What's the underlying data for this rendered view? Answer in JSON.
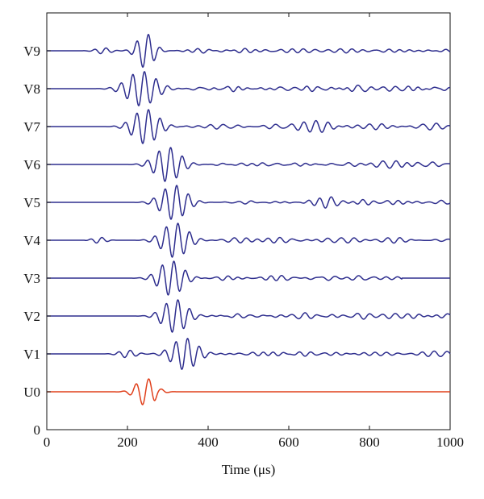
{
  "chart_data": {
    "type": "line",
    "title": "",
    "xlabel": "Time (μs)",
    "ylabel": "",
    "xlim": [
      0,
      1000
    ],
    "x_ticks": [
      0,
      200,
      400,
      600,
      800,
      1000
    ],
    "x_tick_labels": [
      "0",
      "200",
      "400",
      "600",
      "800",
      "1000"
    ],
    "y_ticks": [
      0,
      1,
      2,
      3,
      4,
      5,
      6,
      7,
      8,
      9,
      10
    ],
    "y_tick_labels": [
      "0",
      "U0",
      "V1",
      "V2",
      "V3",
      "V4",
      "V5",
      "V6",
      "V7",
      "V8",
      "V9"
    ],
    "grid": false,
    "series": [
      {
        "name": "U0",
        "baseline": 1,
        "color": "#e0401c",
        "start": 0,
        "trace_start": 0,
        "trace_end": 1000,
        "packets": [
          {
            "center": 245,
            "amp": 0.36,
            "sigma": 32,
            "period": 32
          },
          {
            "center": 270,
            "amp": 0.03,
            "sigma": 12,
            "period": 18
          }
        ],
        "noise_amp": 0.0,
        "noise_start": 0,
        "noise_end": 0
      },
      {
        "name": "V1",
        "baseline": 2,
        "color": "#2e2e8e",
        "start": 125,
        "trace_start": 0,
        "trace_end": 1000,
        "packets": [
          {
            "center": 342,
            "amp": 0.42,
            "sigma": 42,
            "period": 29
          },
          {
            "center": 200,
            "amp": 0.1,
            "sigma": 28,
            "period": 29
          }
        ],
        "noise_amp": 0.09,
        "noise_start": 420,
        "noise_end": 1000
      },
      {
        "name": "V2",
        "baseline": 3,
        "color": "#2e2e8e",
        "start": 130,
        "trace_start": 0,
        "trace_end": 1000,
        "packets": [
          {
            "center": 318,
            "amp": 0.44,
            "sigma": 40,
            "period": 29
          }
        ],
        "noise_amp": 0.1,
        "noise_start": 390,
        "noise_end": 1000
      },
      {
        "name": "V3",
        "baseline": 4,
        "color": "#2e2e8e",
        "start": 120,
        "trace_start": 0,
        "trace_end": 1000,
        "packets": [
          {
            "center": 308,
            "amp": 0.46,
            "sigma": 40,
            "period": 29
          }
        ],
        "noise_amp": 0.1,
        "noise_start": 380,
        "noise_end": 880
      },
      {
        "name": "V4",
        "baseline": 5,
        "color": "#2e2e8e",
        "start": 95,
        "trace_start": 0,
        "trace_end": 1000,
        "packets": [
          {
            "center": 318,
            "amp": 0.46,
            "sigma": 42,
            "period": 29
          },
          {
            "center": 130,
            "amp": 0.08,
            "sigma": 22,
            "period": 29
          }
        ],
        "noise_amp": 0.09,
        "noise_start": 410,
        "noise_end": 1000
      },
      {
        "name": "V5",
        "baseline": 6,
        "color": "#2e2e8e",
        "start": 130,
        "trace_start": 0,
        "trace_end": 1000,
        "packets": [
          {
            "center": 315,
            "amp": 0.46,
            "sigma": 42,
            "period": 29
          },
          {
            "center": 700,
            "amp": 0.1,
            "sigma": 30,
            "period": 29
          }
        ],
        "noise_amp": 0.07,
        "noise_start": 420,
        "noise_end": 1000
      },
      {
        "name": "V6",
        "baseline": 7,
        "color": "#2e2e8e",
        "start": 80,
        "trace_start": 0,
        "trace_end": 1000,
        "packets": [
          {
            "center": 300,
            "amp": 0.46,
            "sigma": 42,
            "period": 29
          },
          {
            "center": 860,
            "amp": 0.1,
            "sigma": 60,
            "period": 29
          }
        ],
        "noise_amp": 0.08,
        "noise_start": 400,
        "noise_end": 1000
      },
      {
        "name": "V7",
        "baseline": 8,
        "color": "#2e2e8e",
        "start": 80,
        "trace_start": 0,
        "trace_end": 1000,
        "packets": [
          {
            "center": 245,
            "amp": 0.46,
            "sigma": 42,
            "period": 29
          },
          {
            "center": 660,
            "amp": 0.1,
            "sigma": 50,
            "period": 29
          }
        ],
        "noise_amp": 0.09,
        "noise_start": 330,
        "noise_end": 1000
      },
      {
        "name": "V8",
        "baseline": 9,
        "color": "#2e2e8e",
        "start": 65,
        "trace_start": 0,
        "trace_end": 1000,
        "packets": [
          {
            "center": 235,
            "amp": 0.46,
            "sigma": 48,
            "period": 29
          }
        ],
        "noise_amp": 0.1,
        "noise_start": 320,
        "noise_end": 1000
      },
      {
        "name": "V9",
        "baseline": 10,
        "color": "#2e2e8e",
        "start": 75,
        "trace_start": 0,
        "trace_end": 1000,
        "packets": [
          {
            "center": 245,
            "amp": 0.46,
            "sigma": 28,
            "period": 29
          },
          {
            "center": 140,
            "amp": 0.08,
            "sigma": 25,
            "period": 29
          }
        ],
        "noise_amp": 0.08,
        "noise_start": 310,
        "noise_end": 1000
      }
    ]
  }
}
